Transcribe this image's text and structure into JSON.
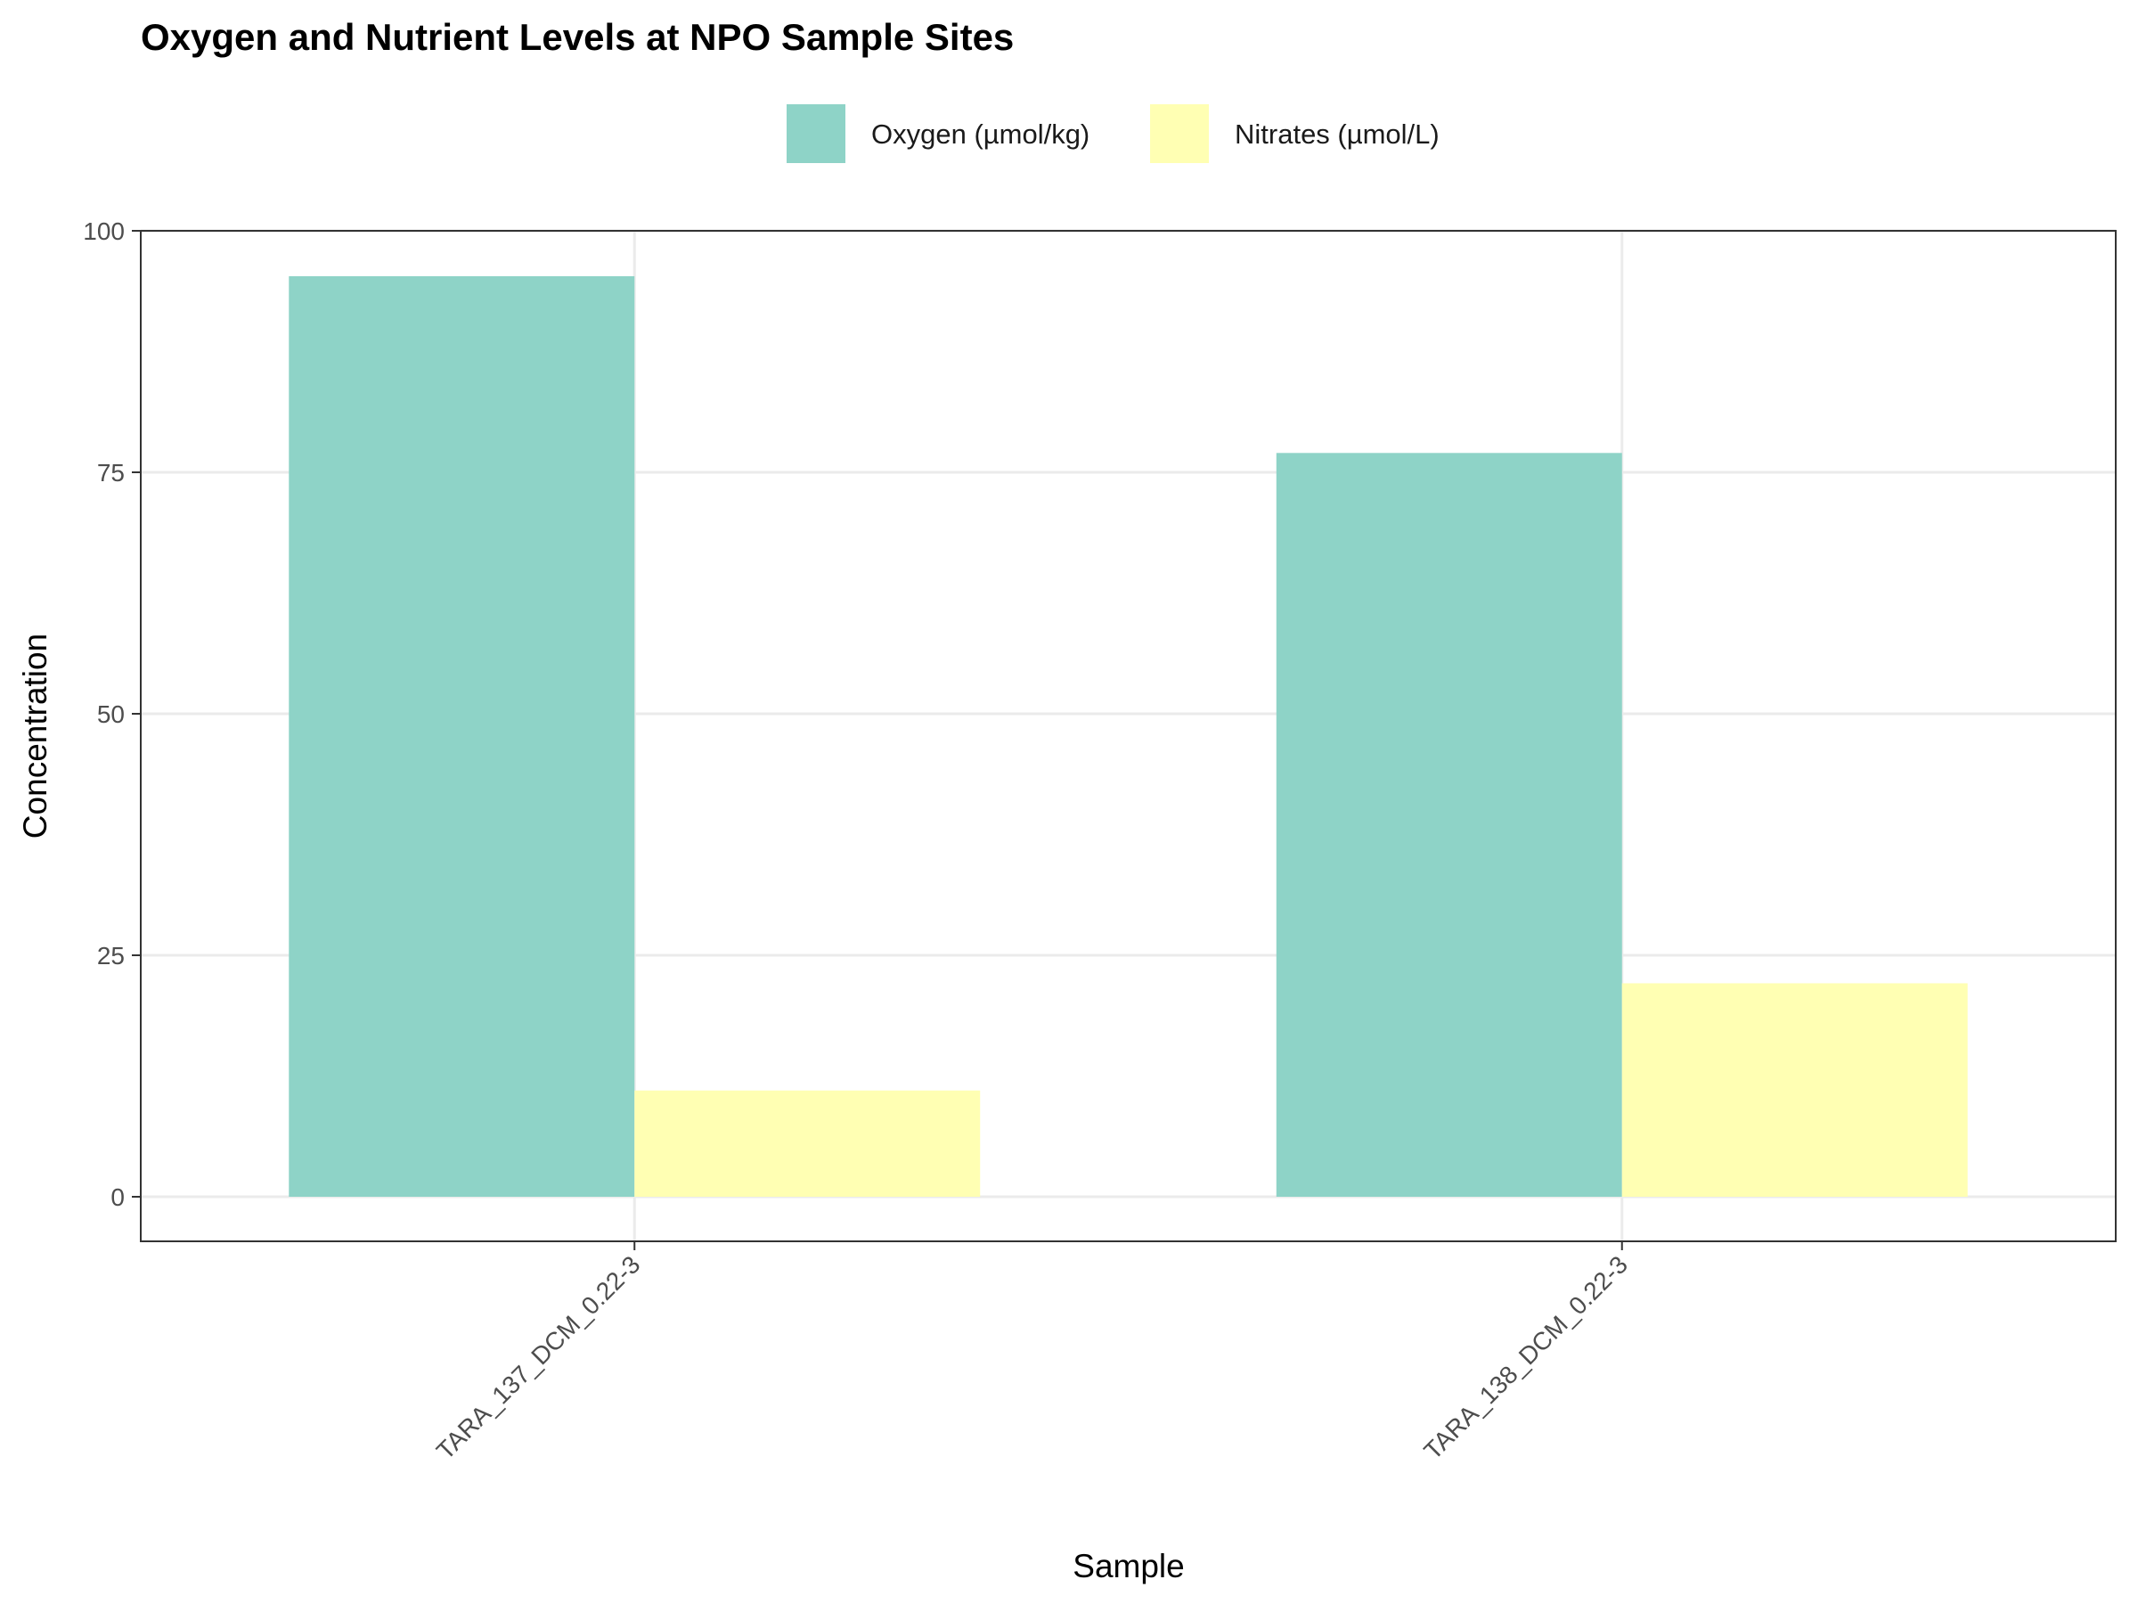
{
  "chart_data": {
    "type": "bar",
    "title": "Oxygen and Nutrient Levels at NPO Sample Sites",
    "xlabel": "Sample",
    "ylabel": "Concentration",
    "categories": [
      "TARA_137_DCM_0.22-3",
      "TARA_138_DCM_0.22-3"
    ],
    "series": [
      {
        "name": "Oxygen (µmol/kg)",
        "values": [
          95.3,
          77.0
        ],
        "color": "#8ED3C7"
      },
      {
        "name": "Nitrates (µmol/L)",
        "values": [
          11.0,
          22.1
        ],
        "color": "#FFFFB3"
      }
    ],
    "ylim": [
      -4.7,
      100
    ],
    "yticks": [
      0,
      25,
      50,
      75,
      100
    ],
    "grid": true,
    "legend_position": "top"
  }
}
